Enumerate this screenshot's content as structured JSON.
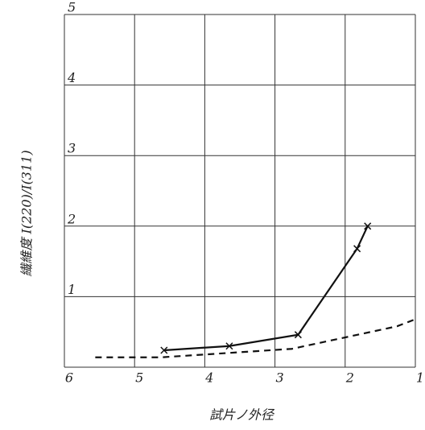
{
  "chart_data": {
    "type": "line",
    "x_label": "試片ノ外径",
    "y_label": "繊維度 I(220)/I(311)",
    "xlim": [
      6,
      1
    ],
    "xticks": [
      6,
      5,
      4,
      3,
      2,
      1
    ],
    "ylim": [
      0,
      5
    ],
    "yticks": [
      1,
      2,
      3,
      4,
      5
    ],
    "grid": true,
    "series": [
      {
        "color": "#111",
        "dash": false,
        "markers": true,
        "x": [
          4.58,
          3.65,
          2.67,
          1.83,
          1.68
        ],
        "values": [
          0.24,
          0.3,
          0.46,
          1.68,
          2.0
        ]
      },
      {
        "color": "#111",
        "dash": true,
        "markers": false,
        "x": [
          5.56,
          4.62,
          2.76,
          1.26,
          1.0
        ],
        "values": [
          0.14,
          0.14,
          0.26,
          0.58,
          0.68
        ]
      }
    ]
  }
}
